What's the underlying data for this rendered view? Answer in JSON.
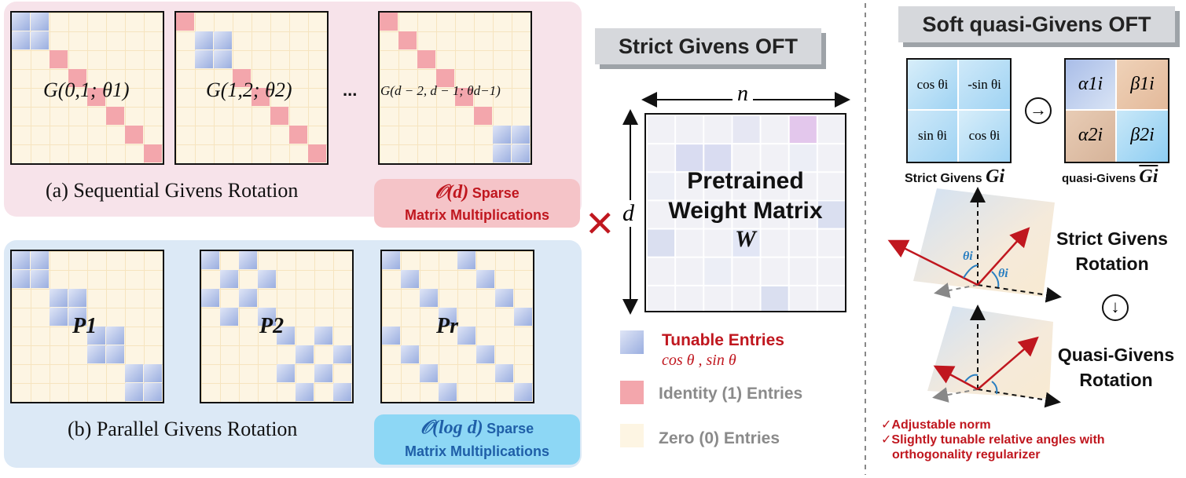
{
  "sequential": {
    "caption": "(a) Sequential Givens Rotation",
    "matrices": [
      {
        "label": "G(0,1; θ1)"
      },
      {
        "label": "G(1,2; θ2)"
      },
      {
        "label": "G(d − 2, d − 1; θd−1)"
      }
    ],
    "ellipsis": "...",
    "badge": {
      "math": "𝒪(d)",
      "line1": "Sparse",
      "line2": "Matrix Multiplications"
    }
  },
  "parallel": {
    "caption": "(b) Parallel Givens Rotation",
    "matrices": [
      {
        "label": "P1"
      },
      {
        "label": "P2"
      },
      {
        "label": "Pr"
      }
    ],
    "badge": {
      "math": "𝒪(log d)",
      "line1": "Sparse",
      "line2": "Matrix Multiplications"
    }
  },
  "strict_title": "Strict Givens OFT",
  "weight": {
    "line1": "Pretrained",
    "line2": "Weight Matrix",
    "line3": "W",
    "dim_n": "n",
    "dim_d": "d"
  },
  "times_symbol": "✕",
  "legend": {
    "tunable": "Tunable Entries",
    "tunable_sub": "cos θ , sin θ",
    "identity": "Identity (1) Entries",
    "zero": "Zero (0) Entries"
  },
  "soft": {
    "title": "Soft quasi-Givens OFT",
    "strict_cells": [
      "cos θi",
      "-sin θi",
      "sin θi",
      "cos θi"
    ],
    "quasi_cells": [
      "α1i",
      "β1i",
      "α2i",
      "β2i"
    ],
    "strict_label": "Strict Givens",
    "strict_symbol": "Gi",
    "quasi_label": "quasi-Givens",
    "quasi_symbol": "Gi",
    "arrow_right": "→",
    "arrow_down": "↓",
    "rot1_line1": "Strict Givens",
    "rot1_line2": "Rotation",
    "rot2_line1": "Quasi-Givens",
    "rot2_line2": "Rotation",
    "theta_label": "θi",
    "notes": [
      "✓Adjustable norm",
      "✓Slightly tunable relative angles with",
      "orthogonality regularizer"
    ]
  },
  "colors": {
    "blue": "#a9b9e6",
    "pink": "#f3a6ac",
    "cream": "#fdf5e3",
    "pink_panel": "#f7e3ea",
    "blue_panel": "#dce9f6",
    "red_text": "#c0171f"
  }
}
